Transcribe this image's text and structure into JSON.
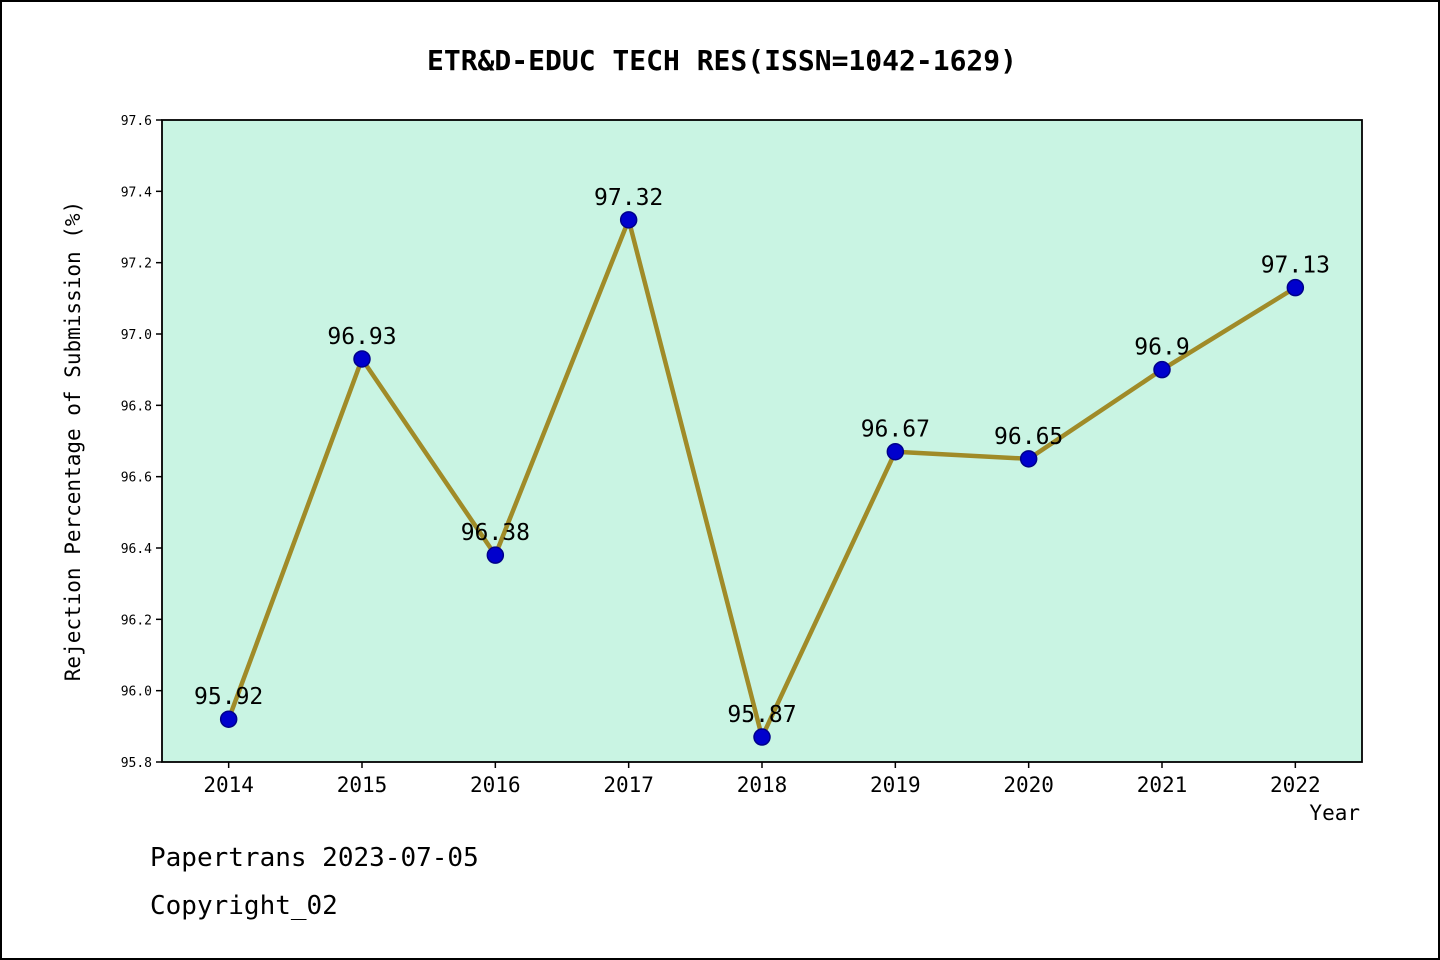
{
  "title": "ETR&D-EDUC TECH RES(ISSN=1042-1629)",
  "footer": {
    "line1": "Papertrans 2023-07-05",
    "line2": "Copyright_02"
  },
  "chart_data": {
    "type": "line",
    "title": "ETR&D-EDUC TECH RES(ISSN=1042-1629)",
    "categories": [
      "2014",
      "2015",
      "2016",
      "2017",
      "2018",
      "2019",
      "2020",
      "2021",
      "2022"
    ],
    "values": [
      95.92,
      96.93,
      96.38,
      97.32,
      95.87,
      96.67,
      96.65,
      96.9,
      97.13
    ],
    "point_labels": [
      "95.92",
      "96.93",
      "96.38",
      "97.32",
      "95.87",
      "96.67",
      "96.65",
      "96.9",
      "97.13"
    ],
    "xlabel": "Year",
    "ylabel": "Rejection Percentage of Submission (%)",
    "ylim": [
      95.8,
      97.6
    ],
    "ytick_step": 0.2,
    "legend": "none",
    "grid": false,
    "colors": {
      "line": "#a08b28",
      "marker_fill": "#0000cd",
      "marker_edge": "#00008b",
      "plot_bg": "#c9f4e3",
      "axis": "#000000"
    }
  }
}
